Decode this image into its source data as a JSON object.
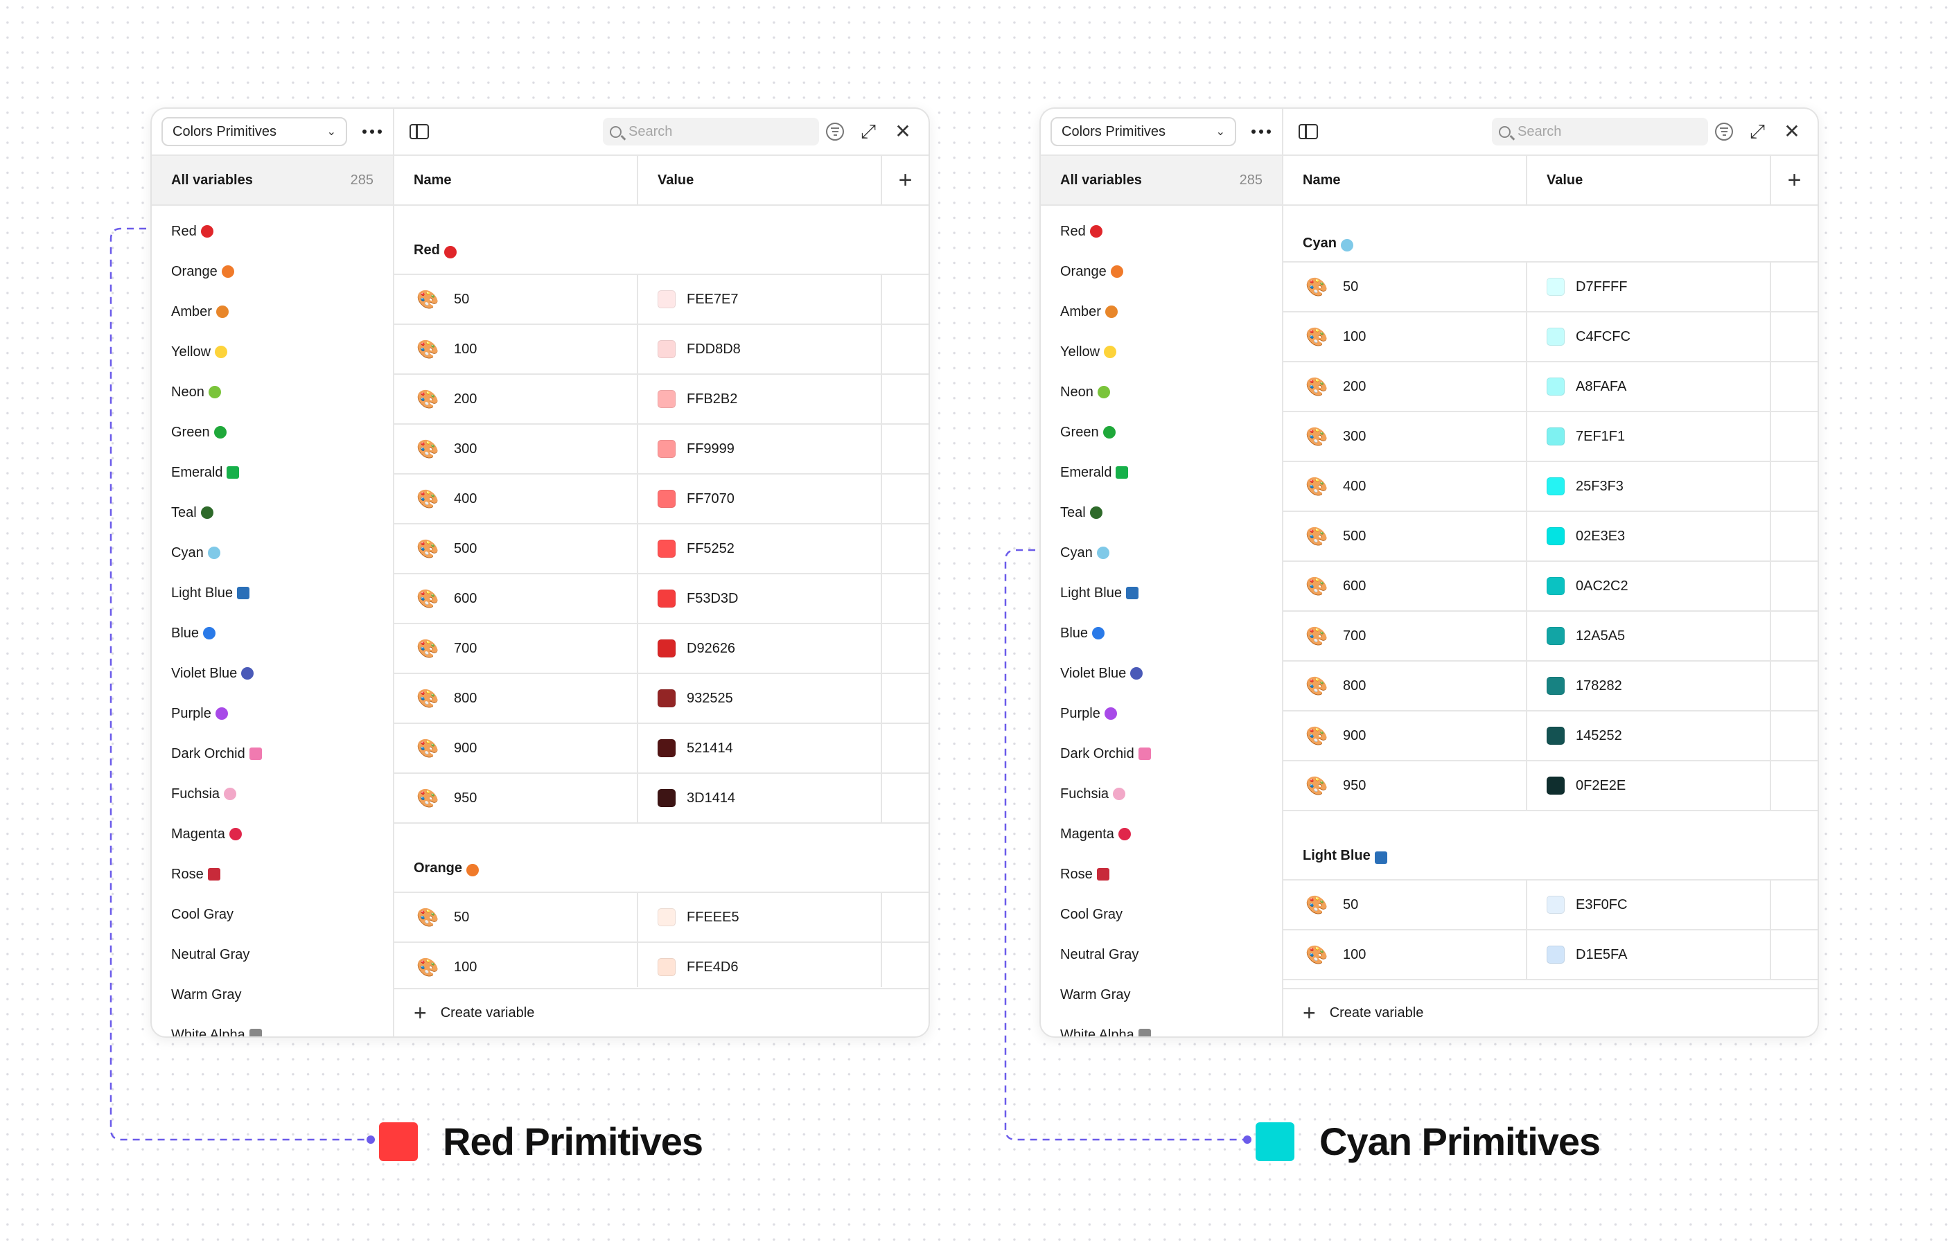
{
  "connector_color": "#6b5bea",
  "panels": [
    {
      "id": "red",
      "collection_name": "Colors Primitives",
      "all_variables_label": "All variables",
      "variable_count": "285",
      "search_placeholder": "Search",
      "columns": {
        "name": "Name",
        "value": "Value"
      },
      "create_variable_label": "Create variable",
      "collections": [
        {
          "label": "Red",
          "swatch": "#e0262a",
          "shape": "circle"
        },
        {
          "label": "Orange",
          "swatch": "#f07a2a",
          "shape": "circle"
        },
        {
          "label": "Amber",
          "swatch": "#e8862a",
          "shape": "circle"
        },
        {
          "label": "Yellow",
          "swatch": "#fdd33a",
          "shape": "circle"
        },
        {
          "label": "Neon",
          "swatch": "#7ac43a",
          "shape": "circle"
        },
        {
          "label": "Green",
          "swatch": "#1fa83a",
          "shape": "circle"
        },
        {
          "label": "Emerald",
          "swatch": "#17b04a",
          "shape": "square"
        },
        {
          "label": "Teal",
          "swatch": "#2e6a2a",
          "shape": "circle"
        },
        {
          "label": "Cyan",
          "swatch": "#7fc9e8",
          "shape": "circle"
        },
        {
          "label": "Light Blue",
          "swatch": "#2a6fb8",
          "shape": "square"
        },
        {
          "label": "Blue",
          "swatch": "#2a7ae8",
          "shape": "circle"
        },
        {
          "label": "Violet Blue",
          "swatch": "#4a5ab8",
          "shape": "circle"
        },
        {
          "label": "Purple",
          "swatch": "#a84ae8",
          "shape": "circle"
        },
        {
          "label": "Dark Orchid",
          "swatch": "#f07ab0",
          "shape": "square"
        },
        {
          "label": "Fuchsia",
          "swatch": "#f2a8c8",
          "shape": "circle"
        },
        {
          "label": "Magenta",
          "swatch": "#e0264a",
          "shape": "circle"
        },
        {
          "label": "Rose",
          "swatch": "#c82a3a",
          "shape": "square"
        },
        {
          "label": "Cool Gray",
          "swatch": "",
          "shape": "none"
        },
        {
          "label": "Neutral Gray",
          "swatch": "",
          "shape": "none"
        },
        {
          "label": "Warm Gray",
          "swatch": "",
          "shape": "none"
        },
        {
          "label": "White Alpha",
          "swatch": "#888888",
          "shape": "square"
        }
      ],
      "groups": [
        {
          "label": "Red",
          "swatch": "#e0262a",
          "shape": "circle",
          "rows": [
            {
              "name": "50",
              "value": "FEE7E7",
              "color": "#FEE7E7"
            },
            {
              "name": "100",
              "value": "FDD8D8",
              "color": "#FDD8D8"
            },
            {
              "name": "200",
              "value": "FFB2B2",
              "color": "#FFB2B2"
            },
            {
              "name": "300",
              "value": "FF9999",
              "color": "#FF9999"
            },
            {
              "name": "400",
              "value": "FF7070",
              "color": "#FF7070"
            },
            {
              "name": "500",
              "value": "FF5252",
              "color": "#FF5252"
            },
            {
              "name": "600",
              "value": "F53D3D",
              "color": "#F53D3D"
            },
            {
              "name": "700",
              "value": "D92626",
              "color": "#D92626"
            },
            {
              "name": "800",
              "value": "932525",
              "color": "#932525"
            },
            {
              "name": "900",
              "value": "521414",
              "color": "#521414"
            },
            {
              "name": "950",
              "value": "3D1414",
              "color": "#3D1414"
            }
          ]
        },
        {
          "label": "Orange",
          "swatch": "#f07a2a",
          "shape": "circle",
          "rows": [
            {
              "name": "50",
              "value": "FFEEE5",
              "color": "#FFEEE5"
            },
            {
              "name": "100",
              "value": "FFE4D6",
              "color": "#FFE4D6"
            }
          ]
        }
      ]
    },
    {
      "id": "cyan",
      "collection_name": "Colors Primitives",
      "all_variables_label": "All variables",
      "variable_count": "285",
      "search_placeholder": "Search",
      "columns": {
        "name": "Name",
        "value": "Value"
      },
      "create_variable_label": "Create variable",
      "collections": [
        {
          "label": "Red",
          "swatch": "#e0262a",
          "shape": "circle"
        },
        {
          "label": "Orange",
          "swatch": "#f07a2a",
          "shape": "circle"
        },
        {
          "label": "Amber",
          "swatch": "#e8862a",
          "shape": "circle"
        },
        {
          "label": "Yellow",
          "swatch": "#fdd33a",
          "shape": "circle"
        },
        {
          "label": "Neon",
          "swatch": "#7ac43a",
          "shape": "circle"
        },
        {
          "label": "Green",
          "swatch": "#1fa83a",
          "shape": "circle"
        },
        {
          "label": "Emerald",
          "swatch": "#17b04a",
          "shape": "square"
        },
        {
          "label": "Teal",
          "swatch": "#2e6a2a",
          "shape": "circle"
        },
        {
          "label": "Cyan",
          "swatch": "#7fc9e8",
          "shape": "circle"
        },
        {
          "label": "Light Blue",
          "swatch": "#2a6fb8",
          "shape": "square"
        },
        {
          "label": "Blue",
          "swatch": "#2a7ae8",
          "shape": "circle"
        },
        {
          "label": "Violet Blue",
          "swatch": "#4a5ab8",
          "shape": "circle"
        },
        {
          "label": "Purple",
          "swatch": "#a84ae8",
          "shape": "circle"
        },
        {
          "label": "Dark Orchid",
          "swatch": "#f07ab0",
          "shape": "square"
        },
        {
          "label": "Fuchsia",
          "swatch": "#f2a8c8",
          "shape": "circle"
        },
        {
          "label": "Magenta",
          "swatch": "#e0264a",
          "shape": "circle"
        },
        {
          "label": "Rose",
          "swatch": "#c82a3a",
          "shape": "square"
        },
        {
          "label": "Cool Gray",
          "swatch": "",
          "shape": "none"
        },
        {
          "label": "Neutral Gray",
          "swatch": "",
          "shape": "none"
        },
        {
          "label": "Warm Gray",
          "swatch": "",
          "shape": "none"
        },
        {
          "label": "White Alpha",
          "swatch": "#888888",
          "shape": "square"
        }
      ],
      "groups": [
        {
          "label": "Cyan",
          "swatch": "#7fc9e8",
          "shape": "circle",
          "rows": [
            {
              "name": "50",
              "value": "D7FFFF",
              "color": "#D7FFFF"
            },
            {
              "name": "100",
              "value": "C4FCFC",
              "color": "#C4FCFC"
            },
            {
              "name": "200",
              "value": "A8FAFA",
              "color": "#A8FAFA"
            },
            {
              "name": "300",
              "value": "7EF1F1",
              "color": "#7EF1F1"
            },
            {
              "name": "400",
              "value": "25F3F3",
              "color": "#25F3F3"
            },
            {
              "name": "500",
              "value": "02E3E3",
              "color": "#02E3E3"
            },
            {
              "name": "600",
              "value": "0AC2C2",
              "color": "#0AC2C2"
            },
            {
              "name": "700",
              "value": "12A5A5",
              "color": "#12A5A5"
            },
            {
              "name": "800",
              "value": "178282",
              "color": "#178282"
            },
            {
              "name": "900",
              "value": "145252",
              "color": "#145252"
            },
            {
              "name": "950",
              "value": "0F2E2E",
              "color": "#0F2E2E"
            }
          ]
        },
        {
          "label": "Light Blue",
          "swatch": "#2a6fb8",
          "shape": "square",
          "rows": [
            {
              "name": "50",
              "value": "E3F0FC",
              "color": "#E3F0FC"
            },
            {
              "name": "100",
              "value": "D1E5FA",
              "color": "#D1E5FA"
            }
          ]
        }
      ]
    }
  ],
  "legends": [
    {
      "label": "Red Primitives",
      "color": "#FF3B3B"
    },
    {
      "label": "Cyan Primitives",
      "color": "#02D8D8"
    }
  ]
}
